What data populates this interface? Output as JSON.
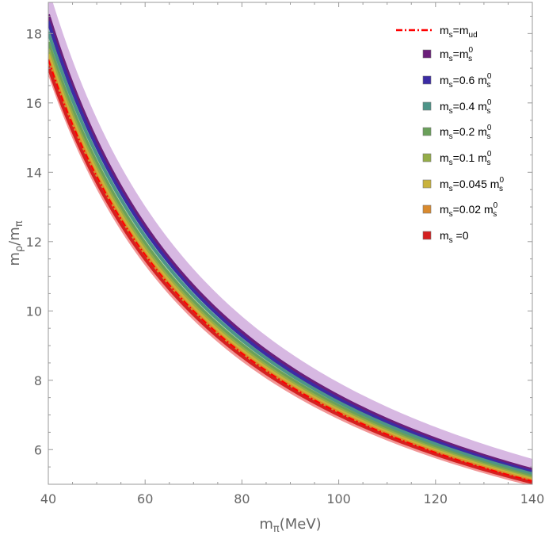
{
  "chart_data": {
    "type": "area",
    "xlabel": {
      "base": "m",
      "sub": "π",
      "suffix": "(MeV)"
    },
    "ylabel": {
      "base1": "m",
      "sub1": "ρ",
      "slash": "/",
      "base2": "m",
      "sub2": "π"
    },
    "xlim": [
      40,
      140
    ],
    "ylim": [
      5.0,
      18.9
    ],
    "x_ticks": [
      40,
      60,
      80,
      100,
      120,
      140
    ],
    "y_ticks": [
      6,
      8,
      10,
      12,
      14,
      16,
      18
    ],
    "grid": false,
    "legend_position": "top-right",
    "curve_sample_x": [
      40,
      60,
      80,
      100,
      120,
      140
    ],
    "series": [
      {
        "name": "ms=m_s0",
        "label": {
          "pre": "m",
          "sub": "s",
          "mid": "=m",
          "sub2": "s",
          "sup": "0"
        },
        "color": "#6b1f7a",
        "band_color": "#c9a0d8",
        "center_at_40": 18.55,
        "center_at_140": 5.42,
        "band_half_width": 0.3
      },
      {
        "name": "ms=0.6 ms0",
        "label": {
          "pre": "m",
          "sub": "s",
          "mid": "=0.6 m",
          "sub2": "s",
          "sup": "0"
        },
        "color": "#3c2ca5",
        "band_color": "#8a7fd0",
        "center_at_40": 18.35,
        "center_at_140": 5.36,
        "band_half_width": 0.08
      },
      {
        "name": "ms=0.4 ms0",
        "label": {
          "pre": "m",
          "sub": "s",
          "mid": "=0.4 m",
          "sub2": "s",
          "sup": "0"
        },
        "color": "#4d9488",
        "band_color": "#9fcfc6",
        "center_at_40": 18.05,
        "center_at_140": 5.3,
        "band_half_width": 0.08
      },
      {
        "name": "ms=0.2 ms0",
        "label": {
          "pre": "m",
          "sub": "s",
          "mid": "=0.2 m",
          "sub2": "s",
          "sup": "0"
        },
        "color": "#6aa05a",
        "band_color": "#b7d9a8",
        "center_at_40": 17.75,
        "center_at_140": 5.23,
        "band_half_width": 0.08
      },
      {
        "name": "ms=0.1 ms0",
        "label": {
          "pre": "m",
          "sub": "s",
          "mid": "=0.1 m",
          "sub2": "s",
          "sup": "0"
        },
        "color": "#94ad48",
        "band_color": "#d3e2a0",
        "center_at_40": 17.55,
        "center_at_140": 5.18,
        "band_half_width": 0.08
      },
      {
        "name": "ms=0.045 ms0",
        "label": {
          "pre": "m",
          "sub": "s",
          "mid": "=0.045 m",
          "sub2": "s",
          "sup": "0"
        },
        "color": "#c9b23c",
        "band_color": "#ece09c",
        "center_at_40": 17.4,
        "center_at_140": 5.14,
        "band_half_width": 0.08
      },
      {
        "name": "ms=0.02 ms0",
        "label": {
          "pre": "m",
          "sub": "s",
          "mid": "=0.02 m",
          "sub2": "s",
          "sup": "0"
        },
        "color": "#d98a2e",
        "band_color": "#f2c68e",
        "center_at_40": 17.25,
        "center_at_140": 5.1,
        "band_half_width": 0.08
      },
      {
        "name": "ms=0",
        "label": {
          "pre": "m",
          "sub": "s",
          "mid": " =0",
          "sub2": "",
          "sup": ""
        },
        "color": "#d42020",
        "band_color": "#f08c8c",
        "center_at_40": 17.05,
        "center_at_140": 5.05,
        "band_half_width": 0.1
      }
    ],
    "reference_line": {
      "name": "ms=mud",
      "label": {
        "pre": "m",
        "sub": "s",
        "mid": "=m",
        "sub2": "ud"
      },
      "color": "#ff0000",
      "style": "dash-dot",
      "center_at_40": 17.25,
      "center_at_140": 5.09
    }
  }
}
